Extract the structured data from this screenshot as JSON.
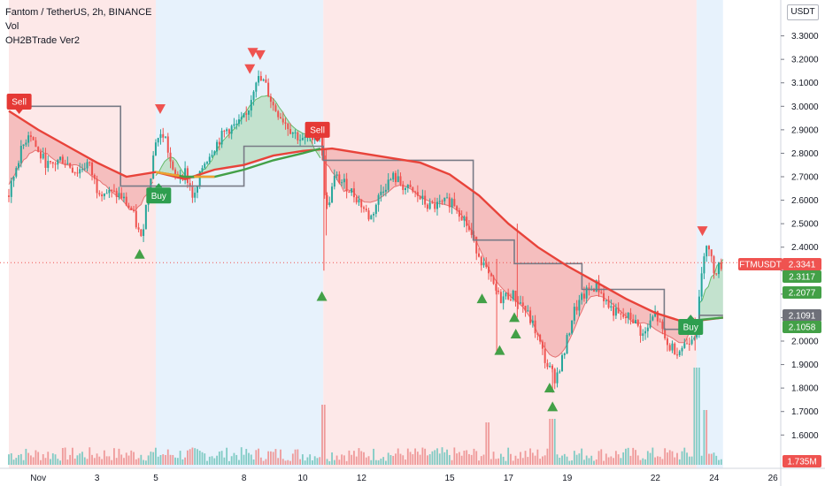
{
  "header": {
    "symbol_line": "Fantom / TetherUS, 2h, BINANCE",
    "indicator_vol": "Vol",
    "indicator_strategy": "OH2BTrade Ver2",
    "currency_button": "USDT"
  },
  "colors": {
    "sell_zone": "#fde4e4",
    "buy_zone": "#e3f0fb",
    "up_candle": "#26a69a",
    "down_candle": "#ef5350",
    "slow_ma": "#e8433a",
    "fast_ma_up": "#43a047",
    "step_line": "#787b86",
    "buy_label": "#2e9e4f",
    "sell_label": "#e53935"
  },
  "chart_data": {
    "type": "line",
    "title": "Fantom / TetherUS, 2h, BINANCE",
    "ylabel": "USDT",
    "ylim": [
      1.47,
      3.44
    ],
    "x_ticks": [
      "Nov",
      "3",
      "5",
      "8",
      "10",
      "12",
      "15",
      "17",
      "19",
      "22",
      "24",
      "26"
    ],
    "x_tick_days": [
      1,
      3,
      5,
      8,
      10,
      12,
      15,
      17,
      19,
      22,
      24,
      26
    ],
    "y_ticks": [
      1.6,
      1.7,
      1.8,
      1.9,
      2.0,
      2.1,
      2.2,
      2.3,
      2.4,
      2.5,
      2.6,
      2.7,
      2.8,
      2.9,
      3.0,
      3.1,
      3.2,
      3.3
    ],
    "y_tick_labels": [
      "1.6000",
      "1.7000",
      "1.8000",
      "1.9000",
      "2.0000",
      "2.1000",
      "2.2000",
      "2.3000",
      "2.4000",
      "2.5000",
      "2.6000",
      "2.7000",
      "2.8000",
      "2.9000",
      "3.0000",
      "3.1000",
      "3.2000",
      "3.3000"
    ],
    "zones": [
      {
        "type": "sell",
        "from_day": 0.0,
        "to_day": 5.0
      },
      {
        "type": "buy",
        "from_day": 5.0,
        "to_day": 10.7
      },
      {
        "type": "sell",
        "from_day": 10.7,
        "to_day": 23.4
      },
      {
        "type": "buy",
        "from_day": 23.4,
        "to_day": 24.3
      }
    ],
    "price_path": [
      {
        "d": 0.0,
        "p": 2.62
      },
      {
        "d": 0.3,
        "p": 2.77
      },
      {
        "d": 0.7,
        "p": 2.9
      },
      {
        "d": 1.0,
        "p": 2.8
      },
      {
        "d": 1.4,
        "p": 2.74
      },
      {
        "d": 1.8,
        "p": 2.78
      },
      {
        "d": 2.3,
        "p": 2.72
      },
      {
        "d": 2.7,
        "p": 2.76
      },
      {
        "d": 3.0,
        "p": 2.65
      },
      {
        "d": 3.4,
        "p": 2.63
      },
      {
        "d": 3.8,
        "p": 2.62
      },
      {
        "d": 4.2,
        "p": 2.55
      },
      {
        "d": 4.5,
        "p": 2.43
      },
      {
        "d": 4.8,
        "p": 2.69
      },
      {
        "d": 5.0,
        "p": 2.86
      },
      {
        "d": 5.3,
        "p": 2.88
      },
      {
        "d": 5.6,
        "p": 2.7
      },
      {
        "d": 6.0,
        "p": 2.72
      },
      {
        "d": 6.3,
        "p": 2.6
      },
      {
        "d": 6.6,
        "p": 2.75
      },
      {
        "d": 7.0,
        "p": 2.83
      },
      {
        "d": 7.4,
        "p": 2.9
      },
      {
        "d": 7.8,
        "p": 2.92
      },
      {
        "d": 8.1,
        "p": 2.96
      },
      {
        "d": 8.4,
        "p": 3.12
      },
      {
        "d": 8.7,
        "p": 3.1
      },
      {
        "d": 9.0,
        "p": 3.0
      },
      {
        "d": 9.3,
        "p": 2.95
      },
      {
        "d": 9.6,
        "p": 2.9
      },
      {
        "d": 10.0,
        "p": 2.85
      },
      {
        "d": 10.3,
        "p": 2.88
      },
      {
        "d": 10.6,
        "p": 2.88
      },
      {
        "d": 10.8,
        "p": 2.55
      },
      {
        "d": 11.1,
        "p": 2.7
      },
      {
        "d": 11.5,
        "p": 2.66
      },
      {
        "d": 11.9,
        "p": 2.6
      },
      {
        "d": 12.3,
        "p": 2.52
      },
      {
        "d": 12.7,
        "p": 2.65
      },
      {
        "d": 13.1,
        "p": 2.7
      },
      {
        "d": 13.5,
        "p": 2.65
      },
      {
        "d": 13.9,
        "p": 2.62
      },
      {
        "d": 14.3,
        "p": 2.57
      },
      {
        "d": 14.7,
        "p": 2.58
      },
      {
        "d": 15.1,
        "p": 2.6
      },
      {
        "d": 15.5,
        "p": 2.52
      },
      {
        "d": 15.9,
        "p": 2.4
      },
      {
        "d": 16.3,
        "p": 2.28
      },
      {
        "d": 16.7,
        "p": 2.18
      },
      {
        "d": 17.1,
        "p": 2.2
      },
      {
        "d": 17.5,
        "p": 2.15
      },
      {
        "d": 17.9,
        "p": 2.05
      },
      {
        "d": 18.3,
        "p": 1.9
      },
      {
        "d": 18.6,
        "p": 1.84
      },
      {
        "d": 18.9,
        "p": 1.95
      },
      {
        "d": 19.2,
        "p": 2.12
      },
      {
        "d": 19.6,
        "p": 2.2
      },
      {
        "d": 20.0,
        "p": 2.24
      },
      {
        "d": 20.4,
        "p": 2.15
      },
      {
        "d": 20.8,
        "p": 2.1
      },
      {
        "d": 21.2,
        "p": 2.1
      },
      {
        "d": 21.6,
        "p": 2.02
      },
      {
        "d": 22.0,
        "p": 2.12
      },
      {
        "d": 22.4,
        "p": 1.98
      },
      {
        "d": 22.8,
        "p": 1.96
      },
      {
        "d": 23.1,
        "p": 2.0
      },
      {
        "d": 23.4,
        "p": 2.05
      },
      {
        "d": 23.7,
        "p": 2.44
      },
      {
        "d": 24.0,
        "p": 2.3
      },
      {
        "d": 24.3,
        "p": 2.33
      }
    ],
    "slow_ma": [
      {
        "d": 0.0,
        "p": 2.98
      },
      {
        "d": 1.0,
        "p": 2.9
      },
      {
        "d": 2.0,
        "p": 2.83
      },
      {
        "d": 3.0,
        "p": 2.76
      },
      {
        "d": 4.0,
        "p": 2.7
      },
      {
        "d": 5.0,
        "p": 2.72
      },
      {
        "d": 6.0,
        "p": 2.69
      },
      {
        "d": 7.0,
        "p": 2.73
      },
      {
        "d": 8.0,
        "p": 2.75
      },
      {
        "d": 9.0,
        "p": 2.79
      },
      {
        "d": 10.0,
        "p": 2.81
      },
      {
        "d": 11.0,
        "p": 2.82
      },
      {
        "d": 12.0,
        "p": 2.8
      },
      {
        "d": 13.0,
        "p": 2.78
      },
      {
        "d": 14.0,
        "p": 2.76
      },
      {
        "d": 15.0,
        "p": 2.71
      },
      {
        "d": 16.0,
        "p": 2.62
      },
      {
        "d": 17.0,
        "p": 2.5
      },
      {
        "d": 18.0,
        "p": 2.4
      },
      {
        "d": 19.0,
        "p": 2.32
      },
      {
        "d": 20.0,
        "p": 2.25
      },
      {
        "d": 21.0,
        "p": 2.18
      },
      {
        "d": 22.0,
        "p": 2.12
      },
      {
        "d": 23.0,
        "p": 2.08
      },
      {
        "d": 24.3,
        "p": 2.1
      }
    ],
    "step_line": [
      {
        "d": 0.0,
        "p": 3.0
      },
      {
        "d": 3.8,
        "p": 3.0
      },
      {
        "d": 3.8,
        "p": 2.66
      },
      {
        "d": 8.0,
        "p": 2.66
      },
      {
        "d": 8.0,
        "p": 2.83
      },
      {
        "d": 10.7,
        "p": 2.83
      },
      {
        "d": 10.7,
        "p": 2.77
      },
      {
        "d": 15.8,
        "p": 2.77
      },
      {
        "d": 15.8,
        "p": 2.43
      },
      {
        "d": 17.2,
        "p": 2.43
      },
      {
        "d": 17.2,
        "p": 2.33
      },
      {
        "d": 19.5,
        "p": 2.33
      },
      {
        "d": 19.5,
        "p": 2.22
      },
      {
        "d": 22.3,
        "p": 2.22
      },
      {
        "d": 22.3,
        "p": 2.05
      },
      {
        "d": 23.5,
        "p": 2.05
      },
      {
        "d": 23.5,
        "p": 2.11
      },
      {
        "d": 24.3,
        "p": 2.11
      }
    ],
    "fast_ma": [
      {
        "d": 5.0,
        "p": 2.72
      },
      {
        "d": 6.0,
        "p": 2.7
      },
      {
        "d": 7.0,
        "p": 2.7
      },
      {
        "d": 8.0,
        "p": 2.73
      },
      {
        "d": 9.0,
        "p": 2.77
      },
      {
        "d": 10.0,
        "p": 2.8
      },
      {
        "d": 10.6,
        "p": 2.82
      }
    ],
    "fast_ma_late": [
      {
        "d": 23.5,
        "p": 2.09
      },
      {
        "d": 24.3,
        "p": 2.1
      }
    ],
    "labels": [
      {
        "text": "Sell",
        "type": "sell",
        "d": 0.35,
        "p": 3.02
      },
      {
        "text": "Buy",
        "type": "buy",
        "d": 5.1,
        "p": 2.62
      },
      {
        "text": "Sell",
        "type": "sell",
        "d": 10.5,
        "p": 2.9
      },
      {
        "text": "Buy",
        "type": "buy",
        "d": 23.2,
        "p": 2.06
      }
    ],
    "markers_up": [
      {
        "d": 4.45,
        "p": 2.37
      },
      {
        "d": 10.65,
        "p": 2.19
      },
      {
        "d": 16.1,
        "p": 2.18
      },
      {
        "d": 16.7,
        "p": 1.96
      },
      {
        "d": 17.2,
        "p": 2.1
      },
      {
        "d": 17.25,
        "p": 2.03
      },
      {
        "d": 18.4,
        "p": 1.8
      },
      {
        "d": 18.5,
        "p": 1.72
      }
    ],
    "markers_down": [
      {
        "d": 5.15,
        "p": 2.99
      },
      {
        "d": 8.3,
        "p": 3.23
      },
      {
        "d": 8.55,
        "p": 3.22
      },
      {
        "d": 8.2,
        "p": 3.16
      },
      {
        "d": 23.6,
        "p": 2.47
      }
    ],
    "price_tags": [
      {
        "text": "FTMUSDT",
        "value": "2.3341",
        "color": "#ef5350",
        "p": 2.3341
      },
      {
        "value": "2.3117",
        "color": "#43a047",
        "p": 2.3117
      },
      {
        "value": "2.2077",
        "color": "#43a047",
        "p": 2.2077
      },
      {
        "value": "2.1091",
        "color": "#6e7079",
        "p": 2.1091
      },
      {
        "value": "2.1058",
        "color": "#43a047",
        "p": 2.1058
      },
      {
        "value": "1.735M",
        "color": "#ef5350",
        "p": 1.478
      }
    ],
    "legend": "none",
    "grid": false
  }
}
